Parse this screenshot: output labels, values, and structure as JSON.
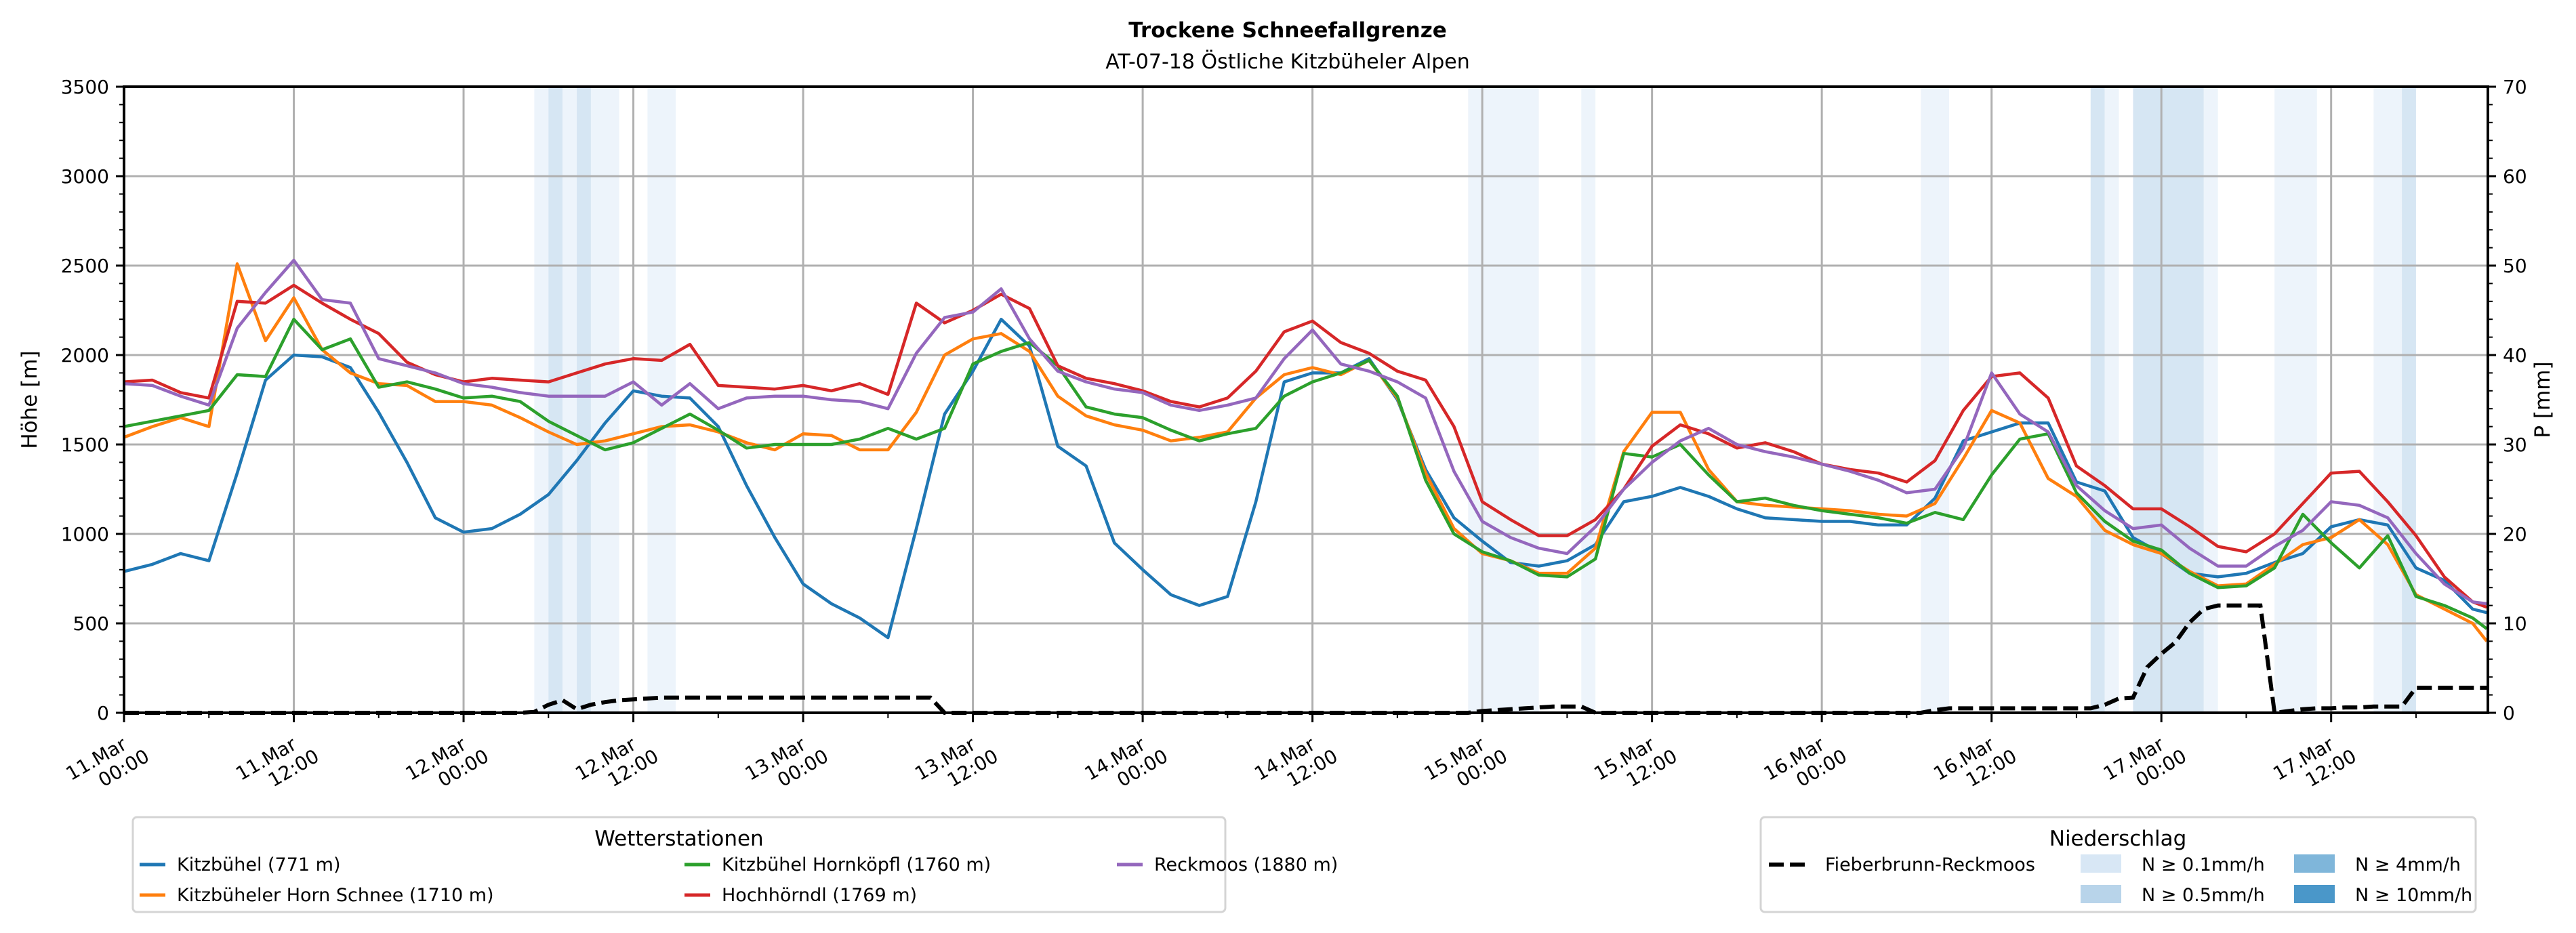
{
  "chart_data": {
    "type": "line",
    "title": "Trockene Schneefallgrenze",
    "subtitle": "AT-07-18 Östliche Kitzbüheler Alpen",
    "ylabel": "Höhe [m]",
    "y2label": "P [mm]",
    "ylim": [
      0,
      3500
    ],
    "y2lim": [
      0,
      70
    ],
    "yticks": [
      "0",
      "500",
      "1000",
      "1500",
      "2000",
      "2500",
      "3000",
      "3500"
    ],
    "y2ticks": [
      "0",
      "10",
      "20",
      "30",
      "40",
      "50",
      "60",
      "70"
    ],
    "x_unit": "hours since 11.Mar 00:00",
    "xlim": [
      0,
      167
    ],
    "xticks": [
      {
        "hour": 0,
        "line1": "11.Mar",
        "line2": "00:00"
      },
      {
        "hour": 12,
        "line1": "11.Mar",
        "line2": "12:00"
      },
      {
        "hour": 24,
        "line1": "12.Mar",
        "line2": "00:00"
      },
      {
        "hour": 36,
        "line1": "12.Mar",
        "line2": "12:00"
      },
      {
        "hour": 48,
        "line1": "13.Mar",
        "line2": "00:00"
      },
      {
        "hour": 60,
        "line1": "13.Mar",
        "line2": "12:00"
      },
      {
        "hour": 72,
        "line1": "14.Mar",
        "line2": "00:00"
      },
      {
        "hour": 84,
        "line1": "14.Mar",
        "line2": "12:00"
      },
      {
        "hour": 96,
        "line1": "15.Mar",
        "line2": "00:00"
      },
      {
        "hour": 108,
        "line1": "15.Mar",
        "line2": "12:00"
      },
      {
        "hour": 120,
        "line1": "16.Mar",
        "line2": "00:00"
      },
      {
        "hour": 132,
        "line1": "16.Mar",
        "line2": "12:00"
      },
      {
        "hour": 144,
        "line1": "17.Mar",
        "line2": "00:00"
      },
      {
        "hour": 156,
        "line1": "17.Mar",
        "line2": "12:00"
      }
    ],
    "grid": true,
    "x": [
      0,
      2,
      4,
      6,
      8,
      10,
      12,
      14,
      16,
      18,
      20,
      22,
      24,
      26,
      28,
      30,
      32,
      34,
      36,
      38,
      40,
      42,
      44,
      46,
      48,
      50,
      52,
      54,
      56,
      58,
      60,
      62,
      64,
      66,
      68,
      70,
      72,
      74,
      76,
      78,
      80,
      82,
      84,
      86,
      88,
      90,
      92,
      94,
      96,
      98,
      100,
      102,
      104,
      106,
      108,
      110,
      112,
      114,
      116,
      118,
      120,
      122,
      124,
      126,
      128,
      130,
      132,
      134,
      136,
      138,
      140,
      142,
      144,
      146,
      148,
      150,
      152,
      154,
      156,
      158,
      160,
      162,
      164,
      166,
      167
    ],
    "series": [
      {
        "name": "Kitzbühel (771 m)",
        "color": "#1f77b4",
        "values": [
          790,
          830,
          890,
          850,
          1340,
          1860,
          2000,
          1990,
          1930,
          1680,
          1400,
          1090,
          1010,
          1030,
          1110,
          1220,
          1410,
          1620,
          1800,
          1770,
          1760,
          1600,
          1270,
          980,
          720,
          610,
          530,
          420,
          1030,
          1670,
          1910,
          2200,
          2050,
          1490,
          1380,
          950,
          800,
          660,
          600,
          650,
          1180,
          1850,
          1900,
          1900,
          1980,
          1750,
          1360,
          1090,
          960,
          840,
          820,
          850,
          940,
          1180,
          1210,
          1260,
          1210,
          1140,
          1090,
          1080,
          1070,
          1070,
          1050,
          1050,
          1200,
          1520,
          1570,
          1620,
          1620,
          1290,
          1240,
          980,
          890,
          780,
          760,
          780,
          840,
          890,
          1040,
          1080,
          1050,
          810,
          740,
          580,
          560
        ]
      },
      {
        "name": "Kitzbüheler Horn Schnee (1710 m)",
        "color": "#ff7f0e",
        "values": [
          1540,
          1600,
          1650,
          1600,
          2510,
          2080,
          2320,
          2030,
          1900,
          1840,
          1830,
          1740,
          1740,
          1720,
          1650,
          1570,
          1500,
          1520,
          1560,
          1600,
          1610,
          1570,
          1510,
          1470,
          1560,
          1550,
          1470,
          1470,
          1680,
          2000,
          2090,
          2120,
          2020,
          1770,
          1660,
          1610,
          1580,
          1520,
          1540,
          1570,
          1760,
          1890,
          1930,
          1890,
          1970,
          1760,
          1340,
          1030,
          890,
          850,
          780,
          780,
          920,
          1460,
          1680,
          1680,
          1360,
          1180,
          1160,
          1150,
          1140,
          1130,
          1110,
          1100,
          1170,
          1420,
          1690,
          1620,
          1310,
          1210,
          1020,
          940,
          890,
          790,
          710,
          720,
          830,
          940,
          980,
          1080,
          940,
          660,
          580,
          500,
          400
        ]
      },
      {
        "name": "Kitzbühel Hornköpfl (1760 m)",
        "color": "#2ca02c",
        "values": [
          1600,
          1630,
          1660,
          1690,
          1890,
          1880,
          2200,
          2030,
          2090,
          1820,
          1850,
          1810,
          1760,
          1770,
          1740,
          1630,
          1550,
          1470,
          1510,
          1590,
          1670,
          1580,
          1480,
          1500,
          1500,
          1500,
          1530,
          1590,
          1530,
          1590,
          1950,
          2020,
          2070,
          1940,
          1710,
          1670,
          1650,
          1580,
          1520,
          1560,
          1590,
          1770,
          1850,
          1900,
          1970,
          1770,
          1300,
          1000,
          900,
          850,
          770,
          760,
          860,
          1450,
          1430,
          1500,
          1330,
          1180,
          1200,
          1160,
          1130,
          1110,
          1090,
          1060,
          1120,
          1080,
          1330,
          1530,
          1560,
          1230,
          1070,
          960,
          910,
          780,
          700,
          710,
          810,
          1110,
          950,
          810,
          990,
          650,
          600,
          530,
          470
        ]
      },
      {
        "name": "Hochhörndl (1769 m)",
        "color": "#d62728",
        "values": [
          1850,
          1860,
          1790,
          1760,
          2300,
          2290,
          2390,
          2290,
          2200,
          2120,
          1960,
          1890,
          1850,
          1870,
          1860,
          1850,
          1900,
          1950,
          1980,
          1970,
          2060,
          1830,
          1820,
          1810,
          1830,
          1800,
          1840,
          1780,
          2290,
          2180,
          2250,
          2340,
          2260,
          1940,
          1870,
          1840,
          1800,
          1740,
          1710,
          1760,
          1910,
          2130,
          2190,
          2070,
          2010,
          1910,
          1860,
          1600,
          1180,
          1080,
          990,
          990,
          1080,
          1250,
          1490,
          1610,
          1560,
          1480,
          1510,
          1460,
          1390,
          1360,
          1340,
          1290,
          1410,
          1690,
          1880,
          1900,
          1760,
          1380,
          1270,
          1140,
          1140,
          1040,
          930,
          900,
          1000,
          1170,
          1340,
          1350,
          1180,
          990,
          760,
          620,
          590
        ]
      },
      {
        "name": "Reckmoos (1880 m)",
        "color": "#9467bd",
        "values": [
          1840,
          1830,
          1770,
          1720,
          2150,
          2350,
          2530,
          2310,
          2290,
          1980,
          1940,
          1900,
          1840,
          1820,
          1790,
          1770,
          1770,
          1770,
          1850,
          1720,
          1840,
          1700,
          1760,
          1770,
          1770,
          1750,
          1740,
          1700,
          2010,
          2210,
          2240,
          2370,
          2090,
          1910,
          1850,
          1810,
          1790,
          1720,
          1690,
          1720,
          1760,
          1980,
          2140,
          1950,
          1910,
          1850,
          1760,
          1350,
          1070,
          980,
          920,
          890,
          1040,
          1250,
          1400,
          1520,
          1590,
          1500,
          1460,
          1430,
          1390,
          1350,
          1300,
          1230,
          1250,
          1480,
          1900,
          1670,
          1570,
          1270,
          1130,
          1030,
          1050,
          920,
          820,
          820,
          930,
          1020,
          1180,
          1160,
          1090,
          890,
          720,
          620,
          610
        ]
      }
    ],
    "precip": {
      "name": "Fieberbrunn-Reckmoos",
      "color": "#000000",
      "unit": "mm",
      "hourly": [
        0,
        0,
        0,
        0,
        0,
        0,
        0,
        0,
        0,
        0,
        0,
        0,
        0,
        0,
        0,
        0,
        0,
        0,
        0,
        0,
        0,
        0,
        0,
        0,
        0,
        0,
        0,
        0,
        0,
        0.1,
        0.9,
        1.4,
        0.4,
        0.9,
        1.2,
        1.4,
        1.5,
        1.6,
        1.7,
        1.7,
        1.7,
        1.7,
        1.7,
        1.7,
        1.7,
        1.7,
        1.7,
        1.7,
        1.7,
        1.7,
        1.7,
        1.7,
        1.7,
        1.7,
        1.7,
        1.7,
        1.7,
        1.7,
        0,
        0,
        0,
        0,
        0,
        0,
        0,
        0,
        0,
        0,
        0,
        0,
        0,
        0,
        0,
        0,
        0,
        0,
        0,
        0,
        0,
        0,
        0,
        0,
        0,
        0,
        0,
        0,
        0,
        0,
        0,
        0,
        0,
        0,
        0,
        0,
        0,
        0,
        0.2,
        0.3,
        0.4,
        0.5,
        0.6,
        0.7,
        0.7,
        0.7,
        0,
        0,
        0,
        0,
        0,
        0,
        0,
        0,
        0,
        0,
        0,
        0,
        0,
        0,
        0,
        0,
        0,
        0,
        0,
        0,
        0,
        0,
        0,
        0,
        0.3,
        0.5,
        0.5,
        0.5,
        0.5,
        0.5,
        0.5,
        0.5,
        0.5,
        0.5,
        0.5,
        0.5,
        0.9,
        1.6,
        1.7,
        5.1,
        6.6,
        7.9,
        10.1,
        11.6,
        12.0,
        12.0,
        12.0,
        12.0,
        0,
        0.2,
        0.4,
        0.5,
        0.5,
        0.6,
        0.6,
        0.7,
        0.7,
        0.7,
        2.8,
        2.8,
        2.8,
        2.8,
        2.8,
        2.8
      ]
    },
    "precip_bands": [
      {
        "from": 29,
        "to": 30,
        "level": "N ≥ 0.1mm/h"
      },
      {
        "from": 30,
        "to": 31,
        "level": "N ≥ 0.5mm/h"
      },
      {
        "from": 31,
        "to": 32,
        "level": "N ≥ 0.1mm/h"
      },
      {
        "from": 32,
        "to": 33,
        "level": "N ≥ 0.5mm/h"
      },
      {
        "from": 33,
        "to": 35,
        "level": "N ≥ 0.1mm/h"
      },
      {
        "from": 37,
        "to": 39,
        "level": "N ≥ 0.1mm/h"
      },
      {
        "from": 95,
        "to": 100,
        "level": "N ≥ 0.1mm/h"
      },
      {
        "from": 103,
        "to": 104,
        "level": "N ≥ 0.1mm/h"
      },
      {
        "from": 127,
        "to": 129,
        "level": "N ≥ 0.1mm/h"
      },
      {
        "from": 139,
        "to": 140,
        "level": "N ≥ 0.5mm/h"
      },
      {
        "from": 140,
        "to": 141,
        "level": "N ≥ 0.1mm/h"
      },
      {
        "from": 142,
        "to": 147,
        "level": "N ≥ 0.5mm/h"
      },
      {
        "from": 147,
        "to": 148,
        "level": "N ≥ 0.1mm/h"
      },
      {
        "from": 152,
        "to": 155,
        "level": "N ≥ 0.1mm/h"
      },
      {
        "from": 159,
        "to": 161,
        "level": "N ≥ 0.1mm/h"
      },
      {
        "from": 161,
        "to": 162,
        "level": "N ≥ 0.5mm/h"
      }
    ],
    "band_colors": {
      "N ≥ 0.1mm/h": "#edf4fb",
      "N ≥ 0.5mm/h": "#d6e6f3"
    },
    "legend_stations": {
      "title": "Wetterstationen",
      "placement": "bottom-left"
    },
    "legend_precip": {
      "title": "Niederschlag",
      "placement": "bottom-right",
      "line_label": "Fieberbrunn-Reckmoos",
      "swatches": [
        {
          "label": "N ≥ 0.1mm/h",
          "color": "#d8e7f5"
        },
        {
          "label": "N ≥ 0.5mm/h",
          "color": "#b8d4ea"
        },
        {
          "label": "N ≥ 4mm/h",
          "color": "#7fb6da"
        },
        {
          "label": "N ≥ 10mm/h",
          "color": "#4a97c9"
        }
      ]
    }
  }
}
